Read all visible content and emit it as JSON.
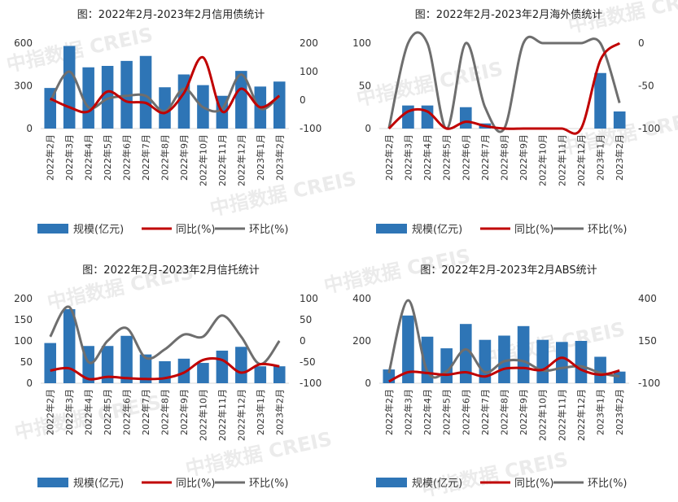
{
  "watermark": {
    "text": "中指数据 CREIS"
  },
  "colors": {
    "bar": "#2e75b6",
    "yoy": "#c00000",
    "mom": "#6e6e6e",
    "axis": "#d9d9d9"
  },
  "chart_data": [
    {
      "type": "bar",
      "title": "图：2022年2月-2023年2月信用债统计",
      "categories": [
        "2022年2月",
        "2022年3月",
        "2022年4月",
        "2022年5月",
        "2022年6月",
        "2022年7月",
        "2022年8月",
        "2022年9月",
        "2022年10月",
        "2022年11月",
        "2022年12月",
        "2023年1月",
        "2023年2月"
      ],
      "left_axis": {
        "ticks": [
          "0",
          "300",
          "600"
        ],
        "range": [
          0,
          600
        ]
      },
      "right_axis": {
        "ticks": [
          "-100",
          "0",
          "100",
          "200"
        ],
        "range": [
          -100,
          200
        ]
      },
      "series": [
        {
          "name": "规模(亿元)",
          "type": "bar",
          "axis": "left",
          "values": [
            285,
            580,
            430,
            440,
            475,
            510,
            290,
            380,
            305,
            230,
            405,
            295,
            330
          ]
        },
        {
          "name": "同比(%)",
          "type": "line",
          "axis": "right",
          "values": [
            5,
            -25,
            -40,
            30,
            -5,
            -10,
            -45,
            25,
            150,
            -40,
            40,
            -25,
            15
          ]
        },
        {
          "name": "环比(%)",
          "type": "line",
          "axis": "right",
          "values": [
            -5,
            100,
            -25,
            5,
            15,
            15,
            -40,
            40,
            -25,
            -30,
            90,
            -30,
            15
          ]
        }
      ],
      "legend": [
        "规模(亿元)",
        "同比(%)",
        "环比(%)"
      ]
    },
    {
      "type": "bar",
      "title": "图：2022年2月-2023年2月海外债统计",
      "categories": [
        "2022年2月",
        "2022年3月",
        "2022年4月",
        "2022年5月",
        "2022年6月",
        "2022年7月",
        "2022年8月",
        "2022年9月",
        "2022年10月",
        "2022年11月",
        "2022年12月",
        "2023年1月",
        "2023年2月"
      ],
      "left_axis": {
        "ticks": [
          "0",
          "50",
          "100"
        ],
        "range": [
          0,
          100
        ]
      },
      "right_axis": {
        "ticks": [
          "-100",
          "-50",
          "0"
        ],
        "range": [
          -100,
          0
        ]
      },
      "series": [
        {
          "name": "规模(亿元)",
          "type": "bar",
          "axis": "left",
          "values": [
            0,
            27,
            27,
            0,
            25,
            6,
            0,
            0,
            0,
            0,
            0,
            65,
            20
          ]
        },
        {
          "name": "同比(%)",
          "type": "line",
          "axis": "right",
          "values": [
            -100,
            -80,
            -80,
            -100,
            -92,
            -97,
            -100,
            -100,
            -100,
            -100,
            -100,
            -20,
            0
          ]
        },
        {
          "name": "环比(%)",
          "type": "line",
          "axis": "right",
          "values": [
            -100,
            0,
            0,
            -100,
            0,
            -75,
            -100,
            0,
            0,
            0,
            0,
            0,
            -70
          ]
        }
      ],
      "legend": [
        "规模(亿元)",
        "同比(%)",
        "环比(%)"
      ]
    },
    {
      "type": "bar",
      "title": "图：2022年2月-2023年2月信托统计",
      "categories": [
        "2022年2月",
        "2022年3月",
        "2022年4月",
        "2022年5月",
        "2022年6月",
        "2022年7月",
        "2022年8月",
        "2022年9月",
        "2022年10月",
        "2022年11月",
        "2022年12月",
        "2023年1月",
        "2023年2月"
      ],
      "left_axis": {
        "ticks": [
          "0",
          "50",
          "100",
          "150",
          "200"
        ],
        "range": [
          0,
          200
        ]
      },
      "right_axis": {
        "ticks": [
          "-100",
          "-50",
          "0",
          "50",
          "100"
        ],
        "range": [
          -100,
          100
        ]
      },
      "series": [
        {
          "name": "规模(亿元)",
          "type": "bar",
          "axis": "left",
          "values": [
            95,
            175,
            88,
            88,
            112,
            68,
            52,
            58,
            48,
            77,
            86,
            40,
            40
          ]
        },
        {
          "name": "同比(%)",
          "type": "line",
          "axis": "right",
          "values": [
            -70,
            -65,
            -90,
            -85,
            -88,
            -90,
            -88,
            -75,
            -45,
            -45,
            -75,
            -55,
            -60
          ]
        },
        {
          "name": "环比(%)",
          "type": "line",
          "axis": "right",
          "values": [
            10,
            80,
            -50,
            0,
            30,
            -40,
            -20,
            15,
            10,
            60,
            10,
            -55,
            0
          ]
        }
      ],
      "legend": [
        "规模(亿元)",
        "同比(%)",
        "环比(%)"
      ]
    },
    {
      "type": "bar",
      "title": "图：2022年2月-2023年2月ABS统计",
      "categories": [
        "2022年2月",
        "2022年3月",
        "2022年4月",
        "2022年5月",
        "2022年6月",
        "2022年7月",
        "2022年8月",
        "2022年9月",
        "2022年10月",
        "2022年11月",
        "2022年12月",
        "2023年1月",
        "2023年2月"
      ],
      "left_axis": {
        "ticks": [
          "0",
          "200",
          "400"
        ],
        "range": [
          0,
          400
        ]
      },
      "right_axis": {
        "ticks": [
          "-100",
          "150",
          "400"
        ],
        "range": [
          -100,
          400
        ]
      },
      "series": [
        {
          "name": "规模(亿元)",
          "type": "bar",
          "axis": "left",
          "values": [
            65,
            320,
            220,
            165,
            280,
            205,
            225,
            270,
            205,
            195,
            200,
            125,
            55
          ]
        },
        {
          "name": "同比(%)",
          "type": "line",
          "axis": "right",
          "values": [
            -90,
            -35,
            -40,
            -50,
            -35,
            -60,
            -15,
            -10,
            -20,
            50,
            -20,
            -50,
            -25
          ]
        },
        {
          "name": "环比(%)",
          "type": "line",
          "axis": "right",
          "values": [
            -40,
            390,
            -30,
            -30,
            100,
            -35,
            30,
            30,
            -25,
            -10,
            0,
            -40,
            -60
          ]
        }
      ],
      "legend": [
        "规模(亿元)",
        "同比(%)",
        "环比(%)"
      ]
    }
  ]
}
